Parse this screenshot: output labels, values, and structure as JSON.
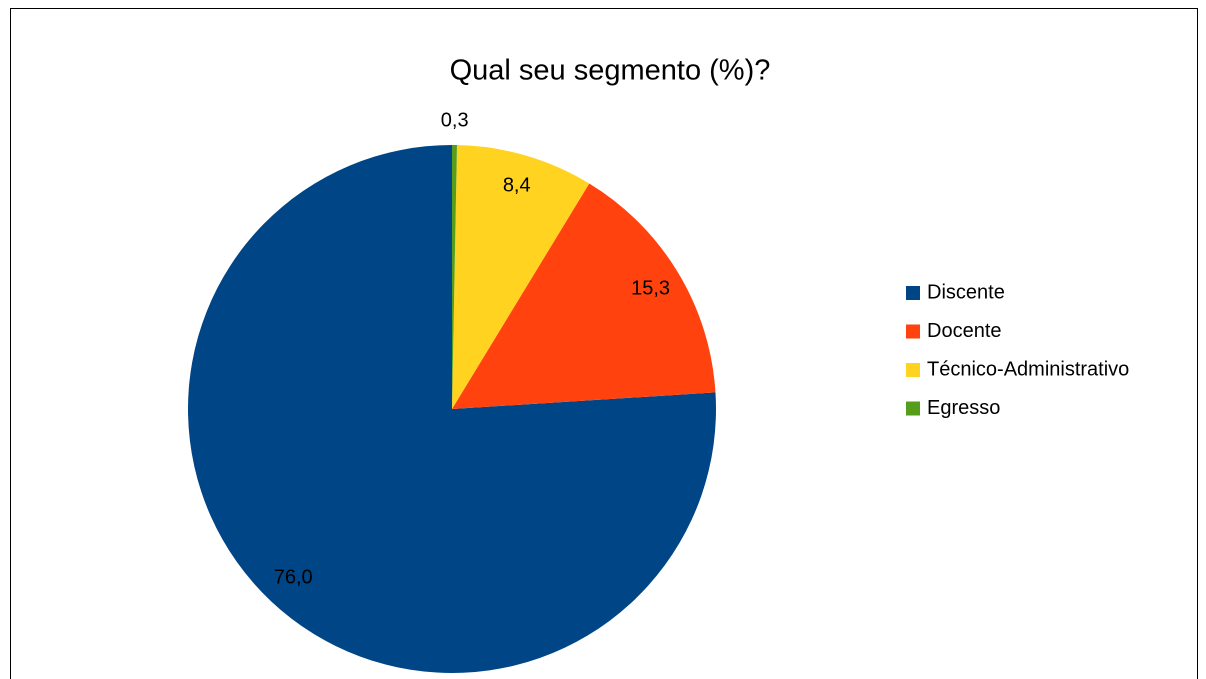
{
  "chart_data": {
    "type": "pie",
    "title": "Qual seu segmento (%)?",
    "categories": [
      "Discente",
      "Docente",
      "Técnico-Administrativo",
      "Egresso"
    ],
    "values": [
      76.0,
      15.3,
      8.4,
      0.3
    ],
    "value_labels": [
      "76,0",
      "15,3",
      "8,4",
      "0,3"
    ],
    "colors": [
      "#004586",
      "#ff420e",
      "#ffd320",
      "#579d1c"
    ],
    "legend": "right"
  }
}
